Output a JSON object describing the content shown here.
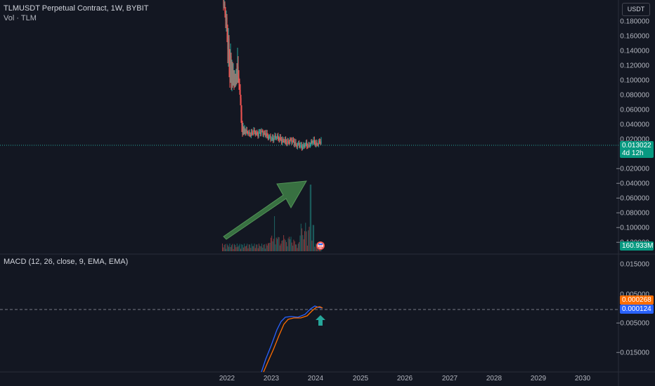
{
  "header": {
    "symbol_line": "TLMUSDT Perpetual Contract, 1W, BYBIT",
    "volume_line": "Vol · TLM",
    "currency_button": "USDT"
  },
  "price_axis": {
    "labels": [
      "0.180000",
      "0.160000",
      "0.140000",
      "0.120000",
      "0.100000",
      "0.080000",
      "0.060000",
      "0.040000",
      "0.020000",
      "−0.020000",
      "−0.040000",
      "−0.060000",
      "−0.080000",
      "−0.100000",
      "−0.120000"
    ],
    "last_price": "0.013022",
    "countdown": "4d 12h",
    "volume_value": "160.933M"
  },
  "macd": {
    "title": "MACD (12, 26, close, 9, EMA, EMA)",
    "axis_labels": [
      "0.015000",
      "0.005000",
      "−0.005000",
      "−0.015000"
    ],
    "signal_value": "0.000268",
    "macd_value": "0.000124"
  },
  "time_axis": {
    "labels": [
      "2022",
      "2023",
      "2024",
      "2025",
      "2026",
      "2027",
      "2028",
      "2029",
      "2030"
    ]
  },
  "colors": {
    "background": "#131722",
    "up": "#26a69a",
    "down": "#ef5350",
    "macd_line": "#2962ff",
    "signal_line": "#ff6d00",
    "annotation_arrow": "#3d7a45"
  }
}
